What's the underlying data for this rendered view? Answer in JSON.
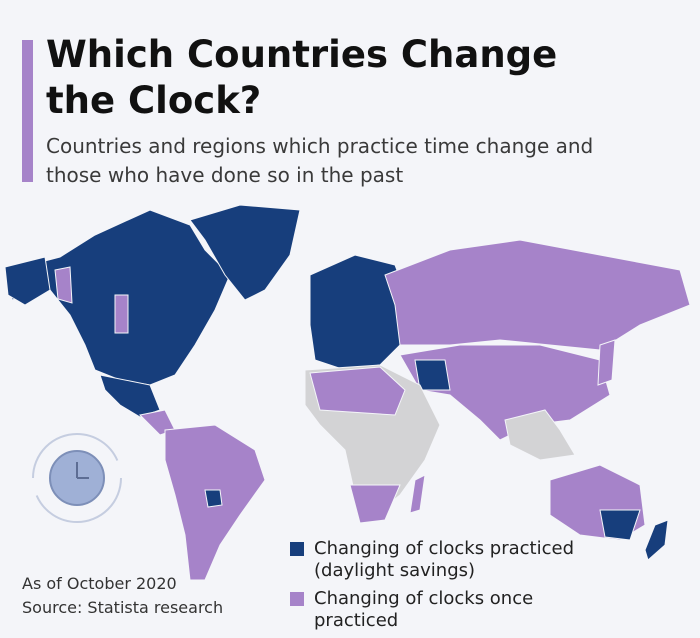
{
  "header": {
    "title": "Which Countries Change the Clock?",
    "subtitle": "Countries and regions which practice time change and those who have done so in the past"
  },
  "legend": [
    {
      "label": "Changing of clocks practiced (daylight savings)",
      "color": "#173e7c"
    },
    {
      "label": "Changing of clocks once practiced",
      "color": "#a683c9"
    }
  ],
  "notes": [
    "As of October 2020",
    "Source: Statista research"
  ]
}
